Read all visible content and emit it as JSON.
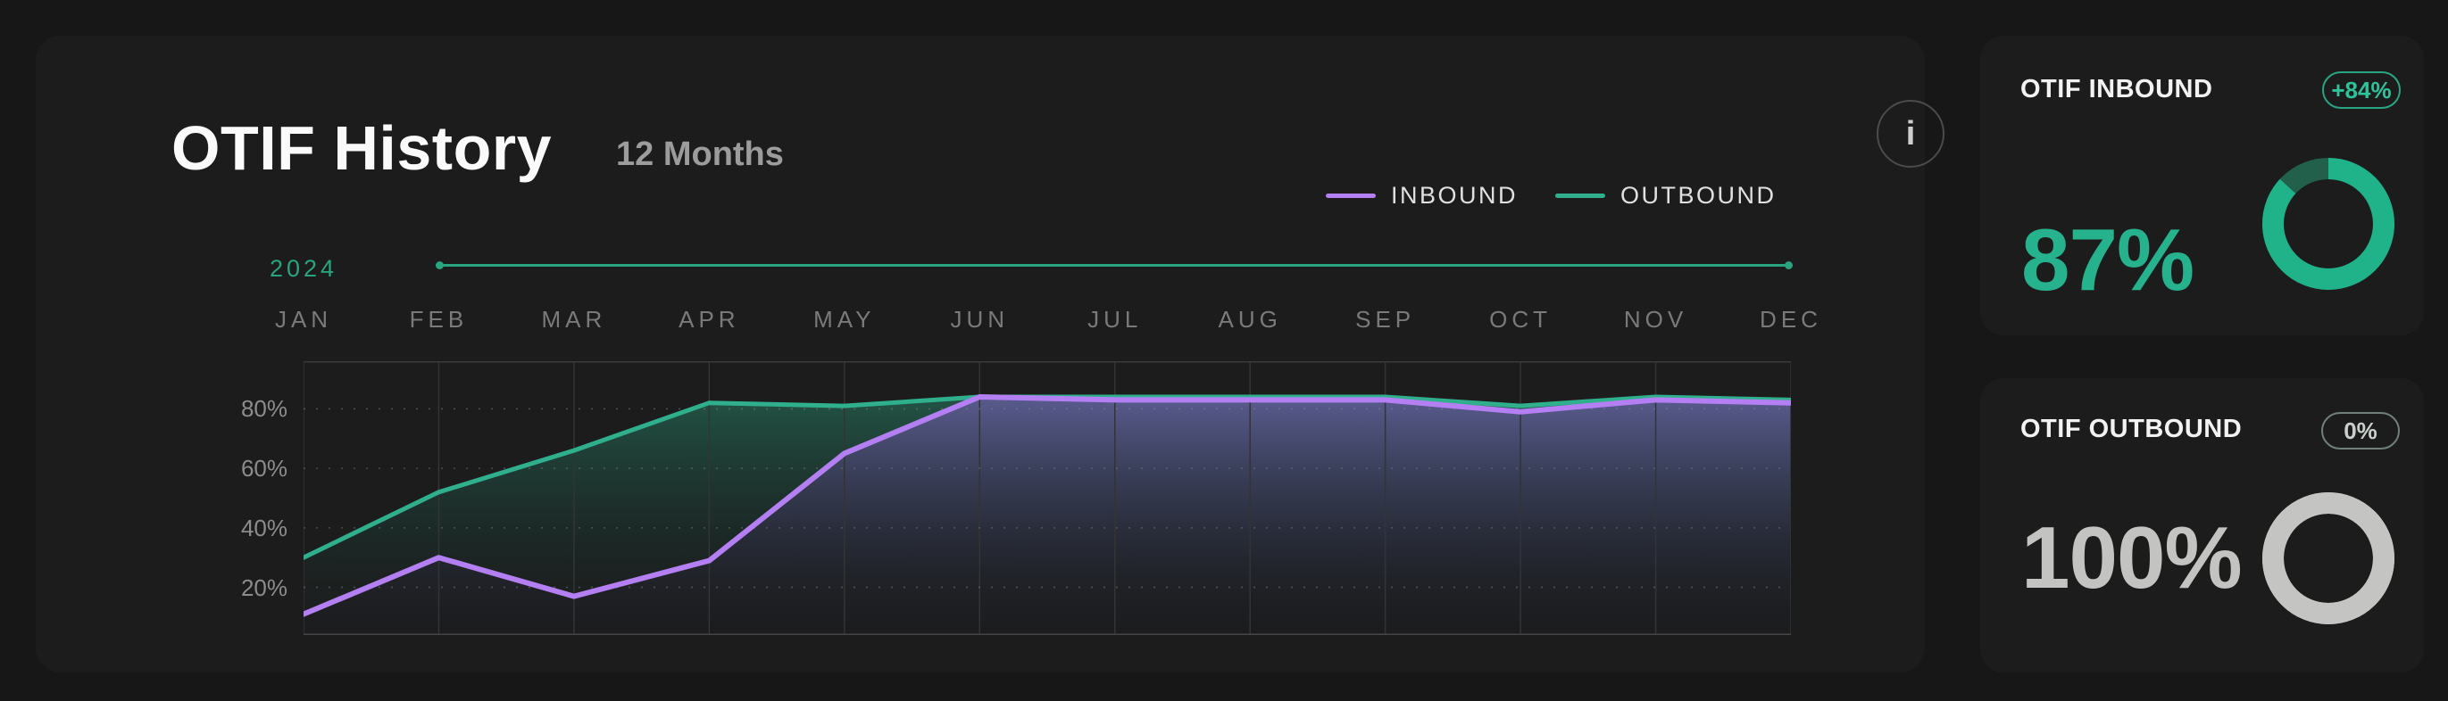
{
  "header": {
    "title": "OTIF History",
    "subtitle": "12 Months",
    "info_icon": "i"
  },
  "timeline": {
    "year": "2024"
  },
  "legend": [
    {
      "label": "INBOUND",
      "color": "#b37ff2"
    },
    {
      "label": "OUTBOUND",
      "color": "#2faf8c"
    }
  ],
  "chart_data": {
    "type": "area",
    "categories": [
      "JAN",
      "FEB",
      "MAR",
      "APR",
      "MAY",
      "JUN",
      "JUL",
      "AUG",
      "SEP",
      "OCT",
      "NOV",
      "DEC"
    ],
    "series": [
      {
        "name": "OUTBOUND",
        "color": "#2faf8c",
        "fill_top": "rgba(43,160,125,0.42)",
        "fill_bottom": "rgba(20,45,38,0.04)",
        "values": [
          30,
          52,
          66,
          82,
          81,
          84,
          84,
          84,
          84,
          81,
          84,
          83
        ]
      },
      {
        "name": "INBOUND",
        "color": "#b37ff2",
        "fill_top": "rgba(140,98,210,0.52)",
        "fill_bottom": "rgba(28,20,40,0.06)",
        "values": [
          11,
          30,
          17,
          29,
          65,
          84,
          83,
          83,
          83,
          79,
          83,
          82
        ]
      }
    ],
    "y_ticks": [
      {
        "label": "20%",
        "value": 20
      },
      {
        "label": "40%",
        "value": 40
      },
      {
        "label": "60%",
        "value": 60
      },
      {
        "label": "80%",
        "value": 80
      }
    ],
    "ylim": [
      4,
      96
    ],
    "grid": "horizontal dotted, vertical solid",
    "legend_position": "top-right",
    "title": "OTIF History",
    "xlabel": "",
    "ylabel": ""
  },
  "cards": [
    {
      "title": "OTIF INBOUND",
      "badge": "+84%",
      "value": "87%",
      "percent": 87,
      "accent": "#20b289",
      "track": "#23604b"
    },
    {
      "title": "OTIF OUTBOUND",
      "badge": "0%",
      "value": "100%",
      "percent": 100,
      "accent": "#c4c5c3",
      "track": "#c4c5c3"
    }
  ]
}
